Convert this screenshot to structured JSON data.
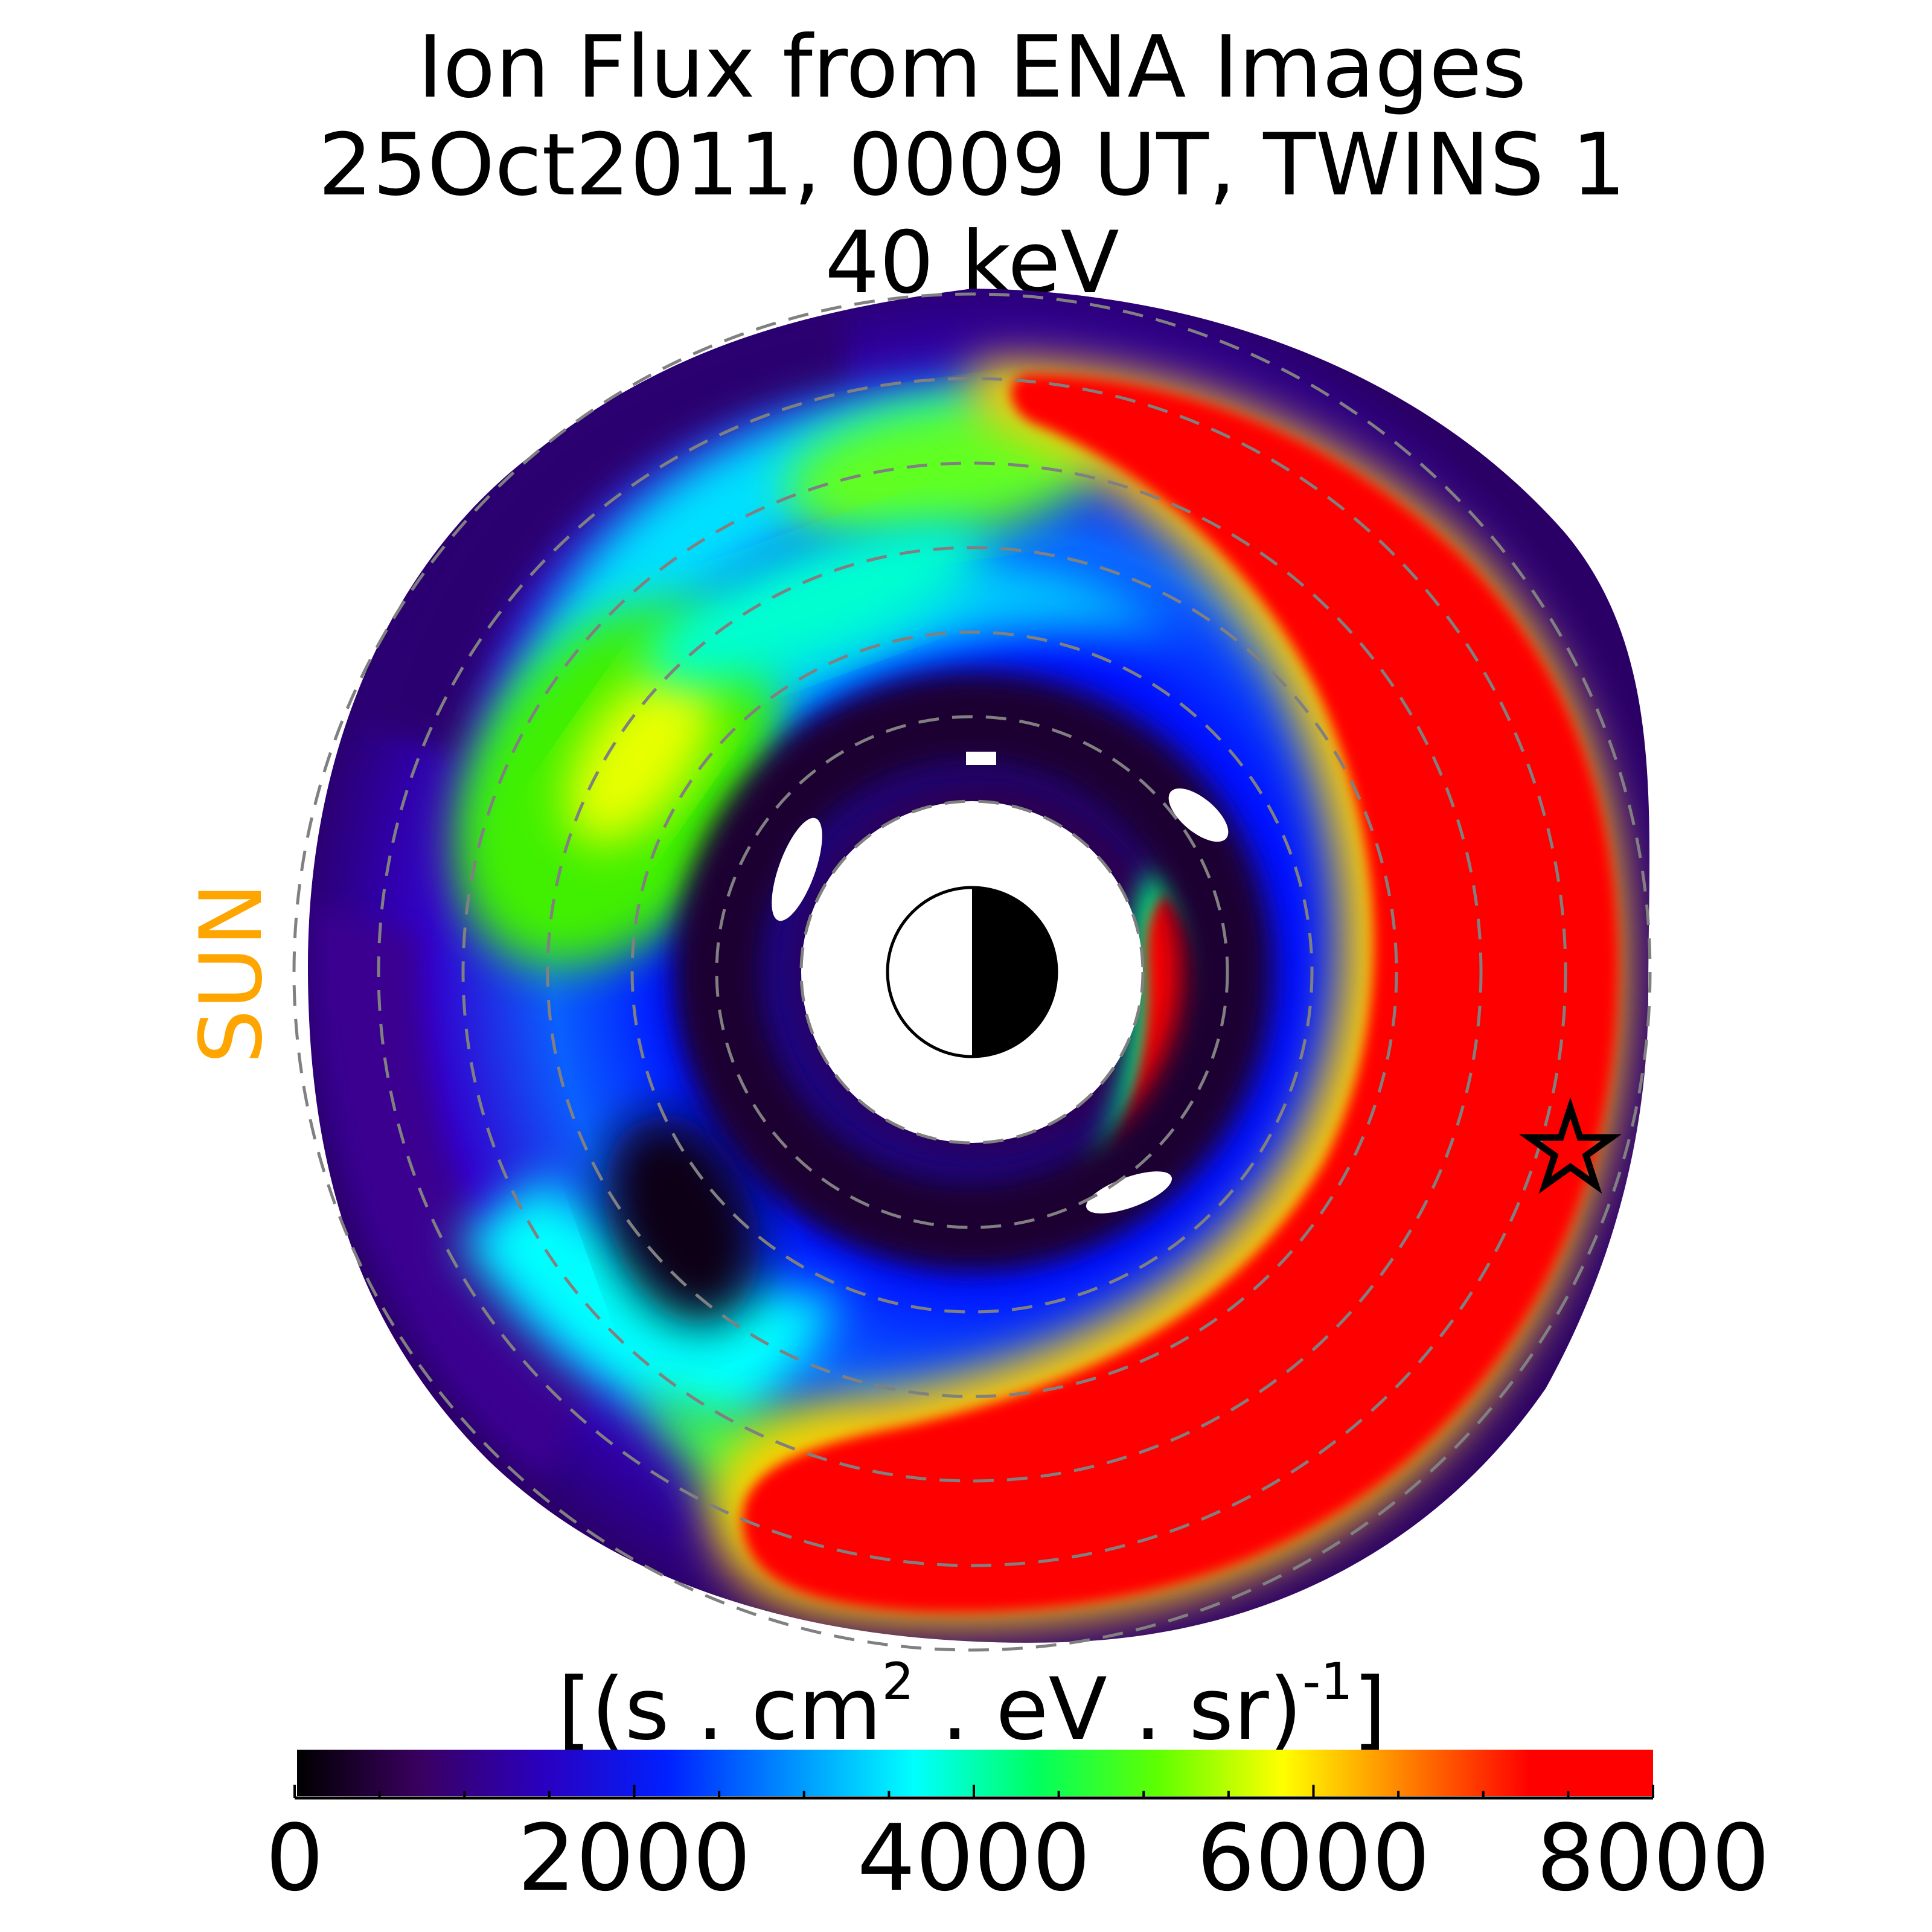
{
  "chart_data": {
    "type": "heatmap",
    "title_lines": [
      "Ion Flux from  ENA Images",
      "25Oct2011, 0009 UT,  TWINS 1",
      "40 keV"
    ],
    "sun_label": "SUN",
    "colorbar": {
      "unit": "[(s . cm",
      "unit_sup1": "2",
      "unit_mid": "  . eV . sr)",
      "unit_sup2": "-1",
      "unit_end": "]",
      "range": [
        0,
        8000
      ],
      "ticks": [
        "0",
        "2000",
        "4000",
        "6000",
        "8000"
      ],
      "colormap": [
        "#000000",
        "#3a0060",
        "#2a00c0",
        "#0020ff",
        "#0090ff",
        "#00ffff",
        "#00ff60",
        "#60ff00",
        "#ffff00",
        "#ff8000",
        "#ff0000",
        "#ff0000"
      ]
    },
    "view": "equatorial plane, Sun to the left",
    "reference_rings": 7,
    "satellite_marker": "star",
    "regions": [
      {
        "name": "dusk-to-midnight ring current",
        "flux": 8000,
        "note": "saturated (>=8000) over the duskside/nightside wedge"
      },
      {
        "name": "inner nightside arc",
        "flux": 8000
      },
      {
        "name": "dawn/prenoon enhancement",
        "flux": 5500
      },
      {
        "name": "postnoon minimum",
        "flux": 300
      },
      {
        "name": "outer boundary",
        "flux": 1200
      }
    ]
  },
  "colors": {
    "sun": "#ffa500",
    "rings": "#808080",
    "saturated": "#ff0000"
  }
}
